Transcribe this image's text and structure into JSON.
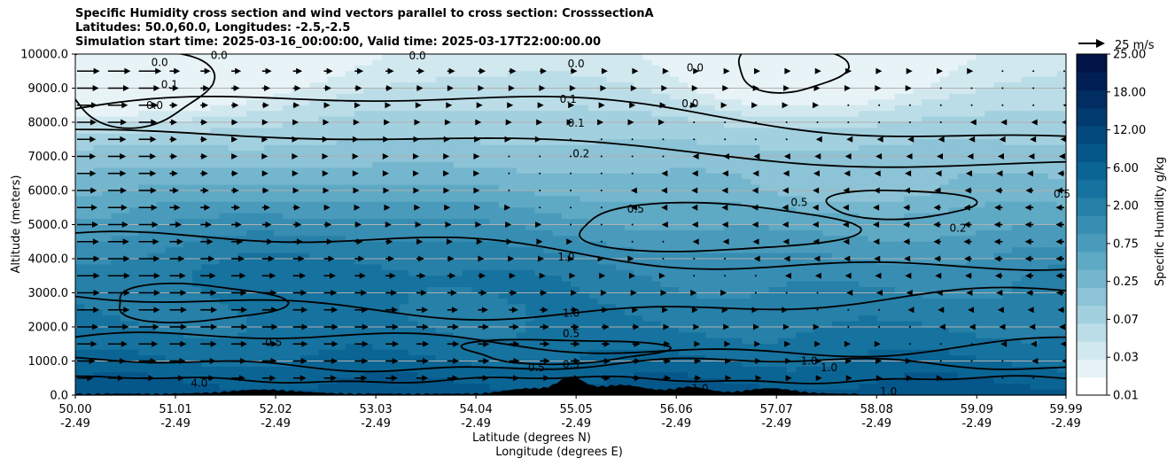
{
  "chart_data": {
    "type": "heatmap",
    "title_lines": [
      "Specific Humidity cross section and wind vectors parallel to cross section: CrosssectionA",
      "Latitudes: 50.0,60.0, Longitudes: -2.5,-2.5",
      "Simulation start time: 2025-03-16_00:00:00, Valid time: 2025-03-17T22:00:00.00"
    ],
    "ylabel": "Altitude (meters)",
    "xlabel_lines": [
      "Latitude (degrees N)",
      "Longitude (degrees E)"
    ],
    "ylim": [
      0,
      10000
    ],
    "xlim": [
      50.0,
      59.99
    ],
    "y_ticks": [
      "0.0",
      "1000.0",
      "2000.0",
      "3000.0",
      "4000.0",
      "5000.0",
      "6000.0",
      "7000.0",
      "8000.0",
      "9000.0",
      "10000.0"
    ],
    "x_ticks": [
      {
        "lat": "50.00",
        "lon": "-2.49"
      },
      {
        "lat": "51.01",
        "lon": "-2.49"
      },
      {
        "lat": "52.02",
        "lon": "-2.49"
      },
      {
        "lat": "53.03",
        "lon": "-2.49"
      },
      {
        "lat": "54.04",
        "lon": "-2.49"
      },
      {
        "lat": "55.05",
        "lon": "-2.49"
      },
      {
        "lat": "56.06",
        "lon": "-2.49"
      },
      {
        "lat": "57.07",
        "lon": "-2.49"
      },
      {
        "lat": "58.08",
        "lon": "-2.49"
      },
      {
        "lat": "59.09",
        "lon": "-2.49"
      },
      {
        "lat": "59.99",
        "lon": "-2.49"
      }
    ],
    "horizontal_grid": true,
    "colorbar": {
      "label": "Specific Humidity g/kg",
      "levels": [
        "0.01",
        "0.03",
        "0.07",
        "0.25",
        "0.75",
        "2.00",
        "6.00",
        "12.00",
        "18.00",
        "25.00"
      ],
      "colors": [
        "#ffffff",
        "#e8f3f7",
        "#d2e8ef",
        "#bbdde7",
        "#a3d0df",
        "#8cc3d6",
        "#74b6cd",
        "#5ea9c4",
        "#4a9bbb",
        "#378db2",
        "#2680a8",
        "#16729e",
        "#0b6594",
        "#05578a",
        "#03497d",
        "#023b70",
        "#012d62",
        "#011f55",
        "#011447"
      ]
    },
    "wind_key": {
      "label": "25 m/s",
      "value": 25
    },
    "contour_labels": [
      {
        "text": "0.0",
        "lat": 50.85,
        "alt": 9750
      },
      {
        "text": "0.0",
        "lat": 51.45,
        "alt": 9960
      },
      {
        "text": "0.1",
        "lat": 50.95,
        "alt": 9100
      },
      {
        "text": "0.0",
        "lat": 50.8,
        "alt": 8500
      },
      {
        "text": "0.0",
        "lat": 53.45,
        "alt": 9950
      },
      {
        "text": "0.0",
        "lat": 55.05,
        "alt": 9720
      },
      {
        "text": "0.1",
        "lat": 54.97,
        "alt": 8680
      },
      {
        "text": "0.1",
        "lat": 55.05,
        "alt": 7980
      },
      {
        "text": "0.2",
        "lat": 55.1,
        "alt": 7080
      },
      {
        "text": "0.0",
        "lat": 56.25,
        "alt": 9600
      },
      {
        "text": "0.0",
        "lat": 56.2,
        "alt": 8550
      },
      {
        "text": "0.5",
        "lat": 55.65,
        "alt": 5450
      },
      {
        "text": "0.5",
        "lat": 57.3,
        "alt": 5650
      },
      {
        "text": "0.2",
        "lat": 58.9,
        "alt": 4900
      },
      {
        "text": "0.5",
        "lat": 59.95,
        "alt": 5900
      },
      {
        "text": "1.0",
        "lat": 54.95,
        "alt": 4050
      },
      {
        "text": "1.0",
        "lat": 55.0,
        "alt": 2400
      },
      {
        "text": "0.5",
        "lat": 55.0,
        "alt": 1800
      },
      {
        "text": "0.5",
        "lat": 52.0,
        "alt": 1550
      },
      {
        "text": "0.5",
        "lat": 55.0,
        "alt": 900
      },
      {
        "text": "0.5",
        "lat": 54.65,
        "alt": 800
      },
      {
        "text": "4.0",
        "lat": 51.25,
        "alt": 350
      },
      {
        "text": "1.0",
        "lat": 57.4,
        "alt": 1000
      },
      {
        "text": "1.0",
        "lat": 57.6,
        "alt": 800
      },
      {
        "text": "1.0",
        "lat": 58.2,
        "alt": 100
      },
      {
        "text": "1.0",
        "lat": 56.3,
        "alt": 200
      }
    ]
  }
}
